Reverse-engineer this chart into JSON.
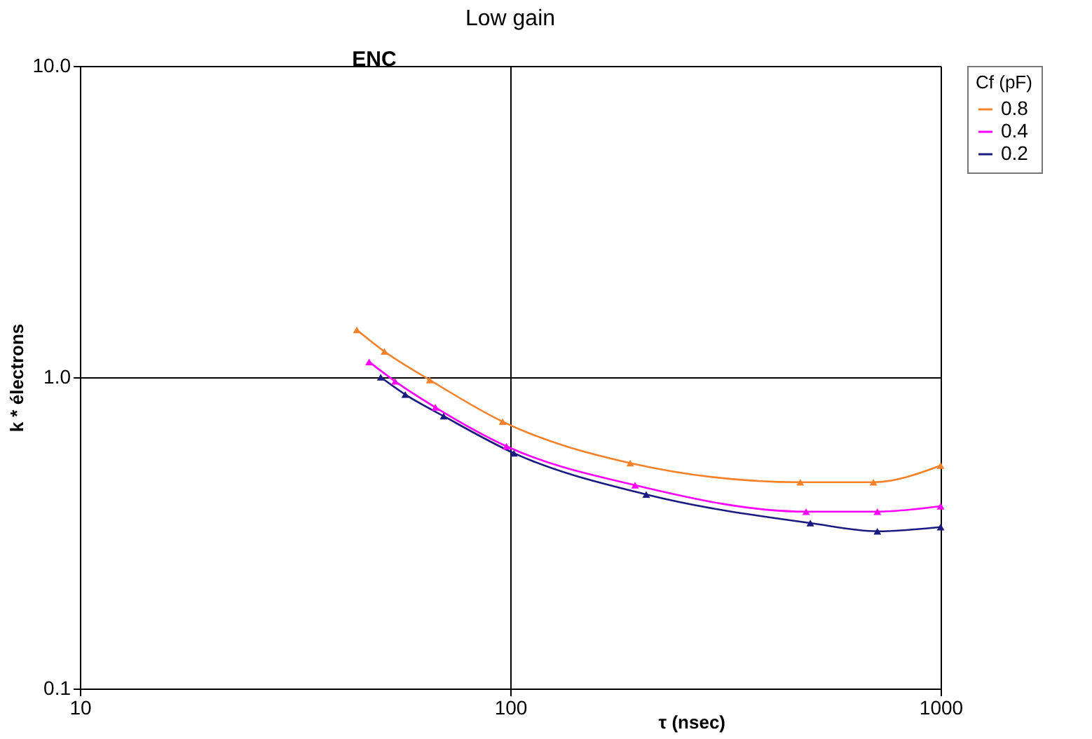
{
  "chart_data": {
    "type": "line",
    "title": "Low   gain",
    "xlabel": "τ (nsec)",
    "ylabel": "k * électrons",
    "legend_title": "Cf (pF)",
    "annotations": [
      "ENC"
    ],
    "log": "xy",
    "xlim": [
      10,
      1000
    ],
    "ylim": [
      0.1,
      10
    ],
    "xticks": [
      10,
      100,
      1000
    ],
    "yticks": [
      {
        "value": 0.1,
        "label": "0.1"
      },
      {
        "value": 1,
        "label": "1.0"
      },
      {
        "value": 10,
        "label": "10.0"
      }
    ],
    "grid": true,
    "legend": "right",
    "marker": "triangle",
    "line_style": "solid",
    "series": [
      {
        "name": "0.8",
        "color": "#f5822a",
        "x": [
          44,
          51,
          65,
          96,
          190,
          472,
          698,
          1000
        ],
        "values": [
          1.42,
          1.21,
          0.98,
          0.72,
          0.53,
          0.46,
          0.46,
          0.52
        ]
      },
      {
        "name": "0.4",
        "color": "#ff00ff",
        "x": [
          47,
          54,
          67,
          98,
          195,
          487,
          713,
          1000
        ],
        "values": [
          1.12,
          0.97,
          0.8,
          0.6,
          0.45,
          0.37,
          0.37,
          0.385
        ]
      },
      {
        "name": "0.2",
        "color": "#1a1a80",
        "x": [
          50,
          57,
          70,
          102,
          207,
          498,
          713,
          1000
        ],
        "values": [
          1.0,
          0.88,
          0.75,
          0.57,
          0.42,
          0.34,
          0.32,
          0.33
        ]
      }
    ]
  }
}
